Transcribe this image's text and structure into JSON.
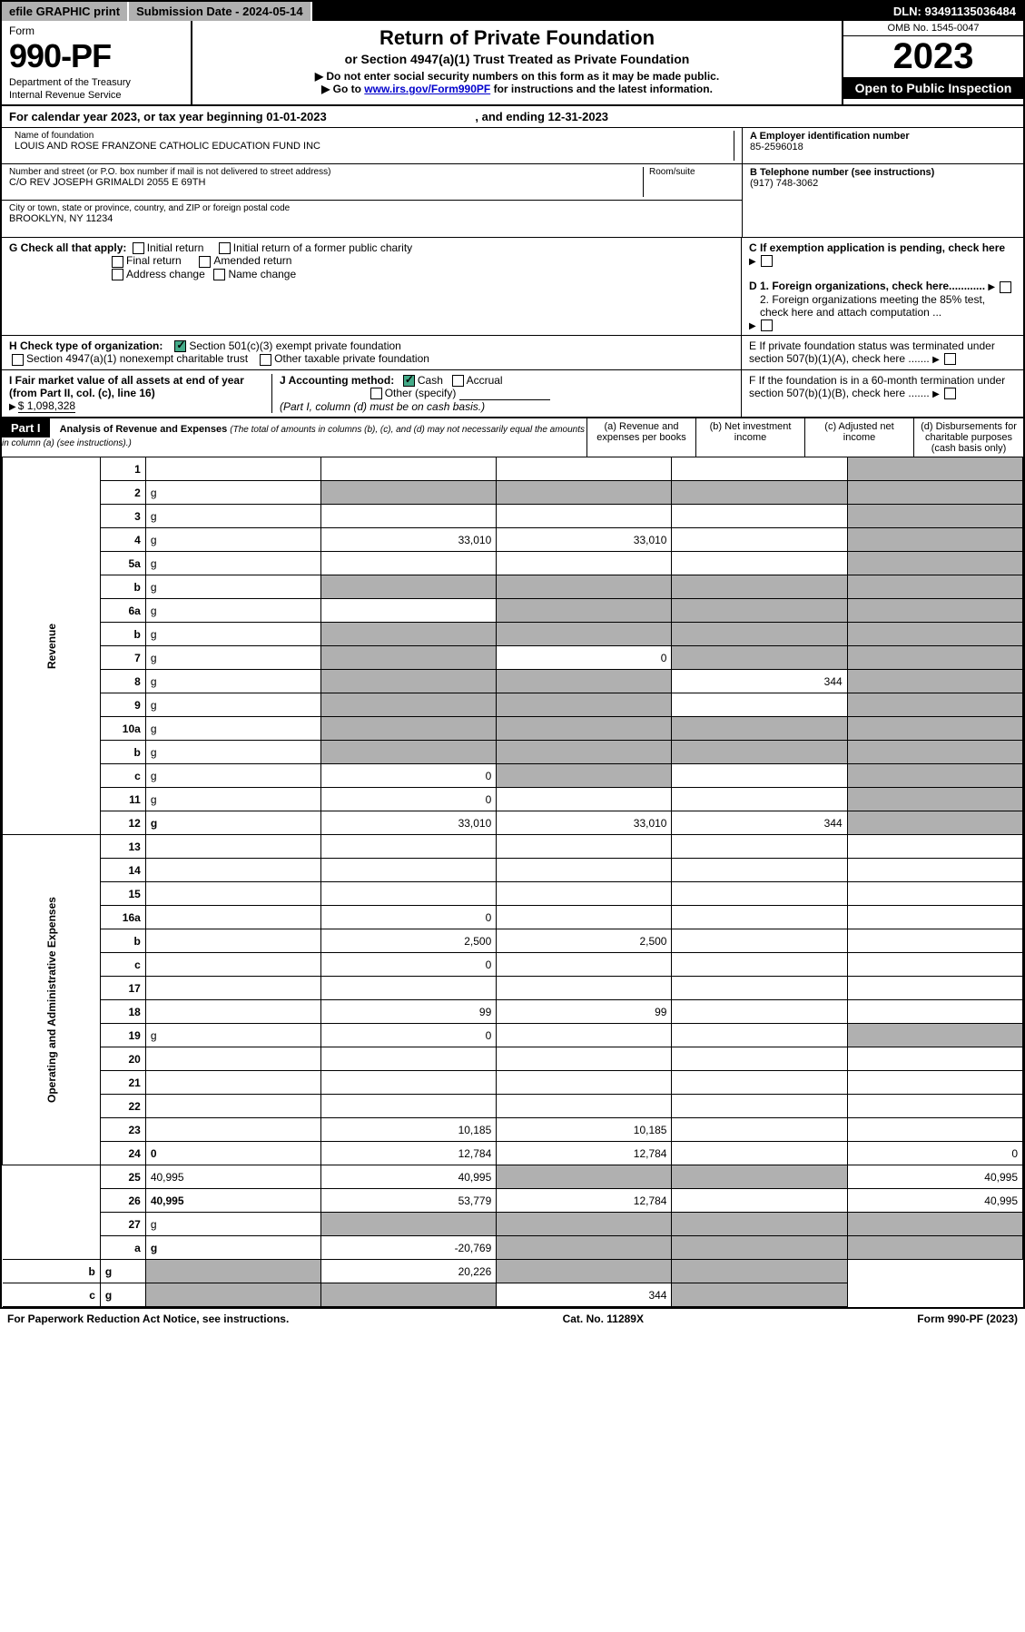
{
  "topbar": {
    "efile": "efile GRAPHIC print",
    "submission": "Submission Date - 2024-05-14",
    "dln": "DLN: 93491135036484"
  },
  "header": {
    "form": "Form",
    "number": "990-PF",
    "dept": "Department of the Treasury",
    "irs": "Internal Revenue Service",
    "title": "Return of Private Foundation",
    "subtitle": "or Section 4947(a)(1) Trust Treated as Private Foundation",
    "note1": "▶ Do not enter social security numbers on this form as it may be made public.",
    "note2_pre": "▶ Go to ",
    "note2_link": "www.irs.gov/Form990PF",
    "note2_post": " for instructions and the latest information.",
    "omb": "OMB No. 1545-0047",
    "year": "2023",
    "open": "Open to Public Inspection"
  },
  "cal": {
    "text_pre": "For calendar year 2023, or tax year beginning ",
    "begin": "01-01-2023",
    "text_mid": ", and ending ",
    "end": "12-31-2023"
  },
  "info": {
    "name_lbl": "Name of foundation",
    "name": "LOUIS AND ROSE FRANZONE CATHOLIC EDUCATION FUND INC",
    "addr_lbl": "Number and street (or P.O. box number if mail is not delivered to street address)",
    "addr": "C/O REV JOSEPH GRIMALDI 2055 E 69TH",
    "room_lbl": "Room/suite",
    "city_lbl": "City or town, state or province, country, and ZIP or foreign postal code",
    "city": "BROOKLYN, NY  11234",
    "ein_lbl": "A Employer identification number",
    "ein": "85-2596018",
    "tel_lbl": "B Telephone number (see instructions)",
    "tel": "(917) 748-3062",
    "c_lbl": "C If exemption application is pending, check here",
    "d1": "D 1. Foreign organizations, check here............",
    "d2": "2. Foreign organizations meeting the 85% test, check here and attach computation ...",
    "e_lbl": "E  If private foundation status was terminated under section 507(b)(1)(A), check here .......",
    "f_lbl": "F  If the foundation is in a 60-month termination under section 507(b)(1)(B), check here .......",
    "g_lbl": "G Check all that apply:",
    "g_opts": [
      "Initial return",
      "Initial return of a former public charity",
      "Final return",
      "Amended return",
      "Address change",
      "Name change"
    ],
    "h_lbl": "H Check type of organization:",
    "h1": "Section 501(c)(3) exempt private foundation",
    "h2": "Section 4947(a)(1) nonexempt charitable trust",
    "h3": "Other taxable private foundation",
    "i_lbl": "I Fair market value of all assets at end of year (from Part II, col. (c), line 16)",
    "i_val": "$  1,098,328",
    "j_lbl": "J Accounting method:",
    "j1": "Cash",
    "j2": "Accrual",
    "j3": "Other (specify)",
    "j_note": "(Part I, column (d) must be on cash basis.)"
  },
  "part1": {
    "label": "Part I",
    "title": "Analysis of Revenue and Expenses",
    "title_note": "(The total of amounts in columns (b), (c), and (d) may not necessarily equal the amounts in column (a) (see instructions).)",
    "cols": {
      "a": "(a)  Revenue and expenses per books",
      "b": "(b)  Net investment income",
      "c": "(c)  Adjusted net income",
      "d": "(d)  Disbursements for charitable purposes (cash basis only)"
    }
  },
  "side": {
    "rev": "Revenue",
    "exp": "Operating and Administrative Expenses"
  },
  "rows": [
    {
      "n": "1",
      "d": "",
      "a": "",
      "b": "",
      "c": "",
      "gd": true
    },
    {
      "n": "2",
      "d": "g",
      "a": "g",
      "b": "g",
      "c": "g"
    },
    {
      "n": "3",
      "d": "g",
      "a": "",
      "b": "",
      "c": ""
    },
    {
      "n": "4",
      "d": "g",
      "a": "33,010",
      "b": "33,010",
      "c": ""
    },
    {
      "n": "5a",
      "d": "g",
      "a": "",
      "b": "",
      "c": ""
    },
    {
      "n": "b",
      "d": "g",
      "a": "g",
      "b": "g",
      "c": "g",
      "half": true
    },
    {
      "n": "6a",
      "d": "g",
      "a": "",
      "b": "g",
      "c": "g"
    },
    {
      "n": "b",
      "d": "g",
      "a": "g",
      "b": "g",
      "c": "g",
      "half": true
    },
    {
      "n": "7",
      "d": "g",
      "a": "g",
      "b": "0",
      "c": "g"
    },
    {
      "n": "8",
      "d": "g",
      "a": "g",
      "b": "g",
      "c": "344"
    },
    {
      "n": "9",
      "d": "g",
      "a": "g",
      "b": "g",
      "c": ""
    },
    {
      "n": "10a",
      "d": "g",
      "a": "g",
      "b": "g",
      "c": "g",
      "half": true
    },
    {
      "n": "b",
      "d": "g",
      "a": "g",
      "b": "g",
      "c": "g",
      "half": true
    },
    {
      "n": "c",
      "d": "g",
      "a": "0",
      "b": "g",
      "c": ""
    },
    {
      "n": "11",
      "d": "g",
      "a": "0",
      "b": "",
      "c": ""
    },
    {
      "n": "12",
      "d": "g",
      "a": "33,010",
      "b": "33,010",
      "c": "344",
      "bold": true
    },
    {
      "n": "13",
      "d": "",
      "a": "",
      "b": "",
      "c": ""
    },
    {
      "n": "14",
      "d": "",
      "a": "",
      "b": "",
      "c": ""
    },
    {
      "n": "15",
      "d": "",
      "a": "",
      "b": "",
      "c": ""
    },
    {
      "n": "16a",
      "d": "",
      "a": "0",
      "b": "",
      "c": ""
    },
    {
      "n": "b",
      "d": "",
      "a": "2,500",
      "b": "2,500",
      "c": ""
    },
    {
      "n": "c",
      "d": "",
      "a": "0",
      "b": "",
      "c": ""
    },
    {
      "n": "17",
      "d": "",
      "a": "",
      "b": "",
      "c": ""
    },
    {
      "n": "18",
      "d": "",
      "a": "99",
      "b": "99",
      "c": ""
    },
    {
      "n": "19",
      "d": "g",
      "a": "0",
      "b": "",
      "c": ""
    },
    {
      "n": "20",
      "d": "",
      "a": "",
      "b": "",
      "c": ""
    },
    {
      "n": "21",
      "d": "",
      "a": "",
      "b": "",
      "c": ""
    },
    {
      "n": "22",
      "d": "",
      "a": "",
      "b": "",
      "c": ""
    },
    {
      "n": "23",
      "d": "",
      "a": "10,185",
      "b": "10,185",
      "c": ""
    },
    {
      "n": "24",
      "d": "0",
      "a": "12,784",
      "b": "12,784",
      "c": "",
      "bold": true
    },
    {
      "n": "25",
      "d": "40,995",
      "a": "40,995",
      "b": "g",
      "c": "g"
    },
    {
      "n": "26",
      "d": "40,995",
      "a": "53,779",
      "b": "12,784",
      "c": "",
      "bold": true
    },
    {
      "n": "27",
      "d": "g",
      "a": "g",
      "b": "g",
      "c": "g"
    },
    {
      "n": "a",
      "d": "g",
      "a": "-20,769",
      "b": "g",
      "c": "g",
      "bold": true
    },
    {
      "n": "b",
      "d": "g",
      "a": "g",
      "b": "20,226",
      "c": "g",
      "bold": true
    },
    {
      "n": "c",
      "d": "g",
      "a": "g",
      "b": "g",
      "c": "344",
      "bold": true
    }
  ],
  "footer": {
    "left": "For Paperwork Reduction Act Notice, see instructions.",
    "mid": "Cat. No. 11289X",
    "right": "Form 990-PF (2023)"
  }
}
